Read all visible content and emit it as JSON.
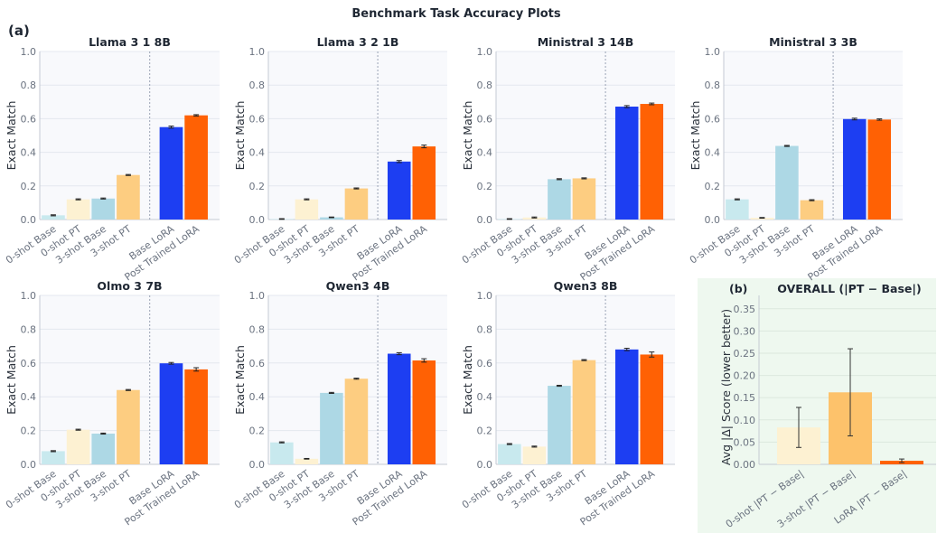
{
  "figure": {
    "title": "Benchmark Task Accuracy Plots",
    "panel_a_label": "(a)",
    "panel_b_label": "(b)"
  },
  "colors": {
    "0-shot Base": "#c8e9ee",
    "0-shot PT": "#fdf1d2",
    "3-shot Base": "#add8e5",
    "3-shot PT": "#fdcd81",
    "Base LoRA": "#1d3ef2",
    "Post Trained LoRA": "#ff6104",
    "overall_0shot": "#fdf1d2",
    "overall_3shot": "#fdc26b",
    "overall_lora": "#ff6104",
    "panel_bg": "#f8f9fc",
    "overall_bg": "#eef8ef"
  },
  "chart_data": [
    {
      "type": "bar",
      "title": "Llama 3 1 8B",
      "ylabel": "Exact Match",
      "ylim": [
        0,
        1
      ],
      "yticks": [
        "0.0",
        "0.2",
        "0.4",
        "0.6",
        "0.8",
        "1.0"
      ],
      "categories": [
        "0-shot Base",
        "0-shot PT",
        "3-shot Base",
        "3-shot PT",
        "Base LoRA",
        "Post Trained LoRA"
      ],
      "values": [
        0.025,
        0.12,
        0.125,
        0.265,
        0.55,
        0.62
      ],
      "errors": [
        0.003,
        0.003,
        0.003,
        0.003,
        0.006,
        0.004
      ]
    },
    {
      "type": "bar",
      "title": "Llama 3 2 1B",
      "ylabel": "Exact Match",
      "ylim": [
        0,
        1
      ],
      "yticks": [
        "0.0",
        "0.2",
        "0.4",
        "0.6",
        "0.8",
        "1.0"
      ],
      "categories": [
        "0-shot Base",
        "0-shot PT",
        "3-shot Base",
        "3-shot PT",
        "Base LoRA",
        "Post Trained LoRA"
      ],
      "values": [
        0.003,
        0.12,
        0.013,
        0.185,
        0.345,
        0.435
      ],
      "errors": [
        0.002,
        0.003,
        0.002,
        0.003,
        0.006,
        0.008
      ]
    },
    {
      "type": "bar",
      "title": "Ministral 3 14B",
      "ylabel": "Exact Match",
      "ylim": [
        0,
        1
      ],
      "yticks": [
        "0.0",
        "0.2",
        "0.4",
        "0.6",
        "0.8",
        "1.0"
      ],
      "categories": [
        "0-shot Base",
        "0-shot PT",
        "3-shot Base",
        "3-shot PT",
        "Base LoRA",
        "Post Trained LoRA"
      ],
      "values": [
        0.003,
        0.012,
        0.24,
        0.245,
        0.672,
        0.688
      ],
      "errors": [
        0.002,
        0.003,
        0.003,
        0.003,
        0.006,
        0.005
      ]
    },
    {
      "type": "bar",
      "title": "Ministral 3 3B",
      "ylabel": "Exact Match",
      "ylim": [
        0,
        1
      ],
      "yticks": [
        "0.0",
        "0.2",
        "0.4",
        "0.6",
        "0.8",
        "1.0"
      ],
      "categories": [
        "0-shot Base",
        "0-shot PT",
        "3-shot Base",
        "3-shot PT",
        "Base LoRA",
        "Post Trained LoRA"
      ],
      "values": [
        0.12,
        0.01,
        0.438,
        0.115,
        0.598,
        0.595
      ],
      "errors": [
        0.003,
        0.002,
        0.003,
        0.003,
        0.005,
        0.004
      ]
    },
    {
      "type": "bar",
      "title": "Olmo 3 7B",
      "ylabel": "Exact Match",
      "ylim": [
        0,
        1
      ],
      "yticks": [
        "0.0",
        "0.2",
        "0.4",
        "0.6",
        "0.8",
        "1.0"
      ],
      "categories": [
        "0-shot Base",
        "0-shot PT",
        "3-shot Base",
        "3-shot PT",
        "Base LoRA",
        "Post Trained LoRA"
      ],
      "values": [
        0.078,
        0.205,
        0.182,
        0.44,
        0.598,
        0.562
      ],
      "errors": [
        0.003,
        0.003,
        0.003,
        0.003,
        0.005,
        0.01
      ]
    },
    {
      "type": "bar",
      "title": "Qwen3 4B",
      "ylabel": "Exact Match",
      "ylim": [
        0,
        1
      ],
      "yticks": [
        "0.0",
        "0.2",
        "0.4",
        "0.6",
        "0.8",
        "1.0"
      ],
      "categories": [
        "0-shot Base",
        "0-shot PT",
        "3-shot Base",
        "3-shot PT",
        "Base LoRA",
        "Post Trained LoRA"
      ],
      "values": [
        0.13,
        0.033,
        0.423,
        0.507,
        0.655,
        0.615
      ],
      "errors": [
        0.003,
        0.002,
        0.003,
        0.003,
        0.006,
        0.01
      ]
    },
    {
      "type": "bar",
      "title": "Qwen3 8B",
      "ylabel": "Exact Match",
      "ylim": [
        0,
        1
      ],
      "yticks": [
        "0.0",
        "0.2",
        "0.4",
        "0.6",
        "0.8",
        "1.0"
      ],
      "categories": [
        "0-shot Base",
        "0-shot PT",
        "3-shot Base",
        "3-shot PT",
        "Base LoRA",
        "Post Trained LoRA"
      ],
      "values": [
        0.12,
        0.105,
        0.465,
        0.617,
        0.68,
        0.65
      ],
      "errors": [
        0.003,
        0.003,
        0.003,
        0.003,
        0.007,
        0.015
      ]
    },
    {
      "type": "bar",
      "title": "OVERALL (|PT − Base|)",
      "ylabel": "Avg |Δ| Score (lower better)",
      "ylim": [
        0,
        0.38
      ],
      "yticks": [
        "0.00",
        "0.05",
        "0.10",
        "0.15",
        "0.20",
        "0.25",
        "0.30",
        "0.35"
      ],
      "categories": [
        "0-shot |PT − Base|",
        "3-shot |PT − Base|",
        "LoRA |PT − Base|"
      ],
      "values": [
        0.083,
        0.162,
        0.008
      ],
      "errors": [
        0.045,
        0.098,
        0.004
      ]
    }
  ]
}
